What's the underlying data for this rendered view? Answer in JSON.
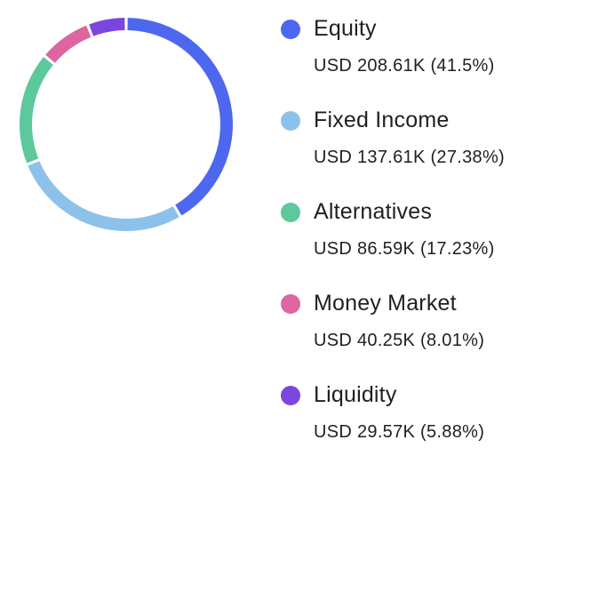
{
  "chart_data": {
    "type": "pie",
    "title": "",
    "donut": true,
    "legend_placement": "right",
    "categories": [
      "Equity",
      "Fixed Income",
      "Alternatives",
      "Money Market",
      "Liquidity"
    ],
    "values": [
      208.61,
      137.61,
      86.59,
      40.25,
      29.57
    ],
    "percentages": [
      41.5,
      27.38,
      17.23,
      8.01,
      5.88
    ],
    "colors": [
      "#4d68ee",
      "#8cc2ea",
      "#5cc89c",
      "#dd66a0",
      "#7b45df"
    ],
    "slices": [
      {
        "name": "Equity",
        "value_label": "USD 208.61K (41.5%)",
        "color": "#4d68ee"
      },
      {
        "name": "Fixed Income",
        "value_label": "USD 137.61K (27.38%)",
        "color": "#8cc2ea"
      },
      {
        "name": "Alternatives",
        "value_label": "USD 86.59K (17.23%)",
        "color": "#5cc89c"
      },
      {
        "name": "Money Market",
        "value_label": "USD 40.25K (8.01%)",
        "color": "#dd66a0"
      },
      {
        "name": "Liquidity",
        "value_label": "USD 29.57K (5.88%)",
        "color": "#7b45df"
      }
    ]
  }
}
